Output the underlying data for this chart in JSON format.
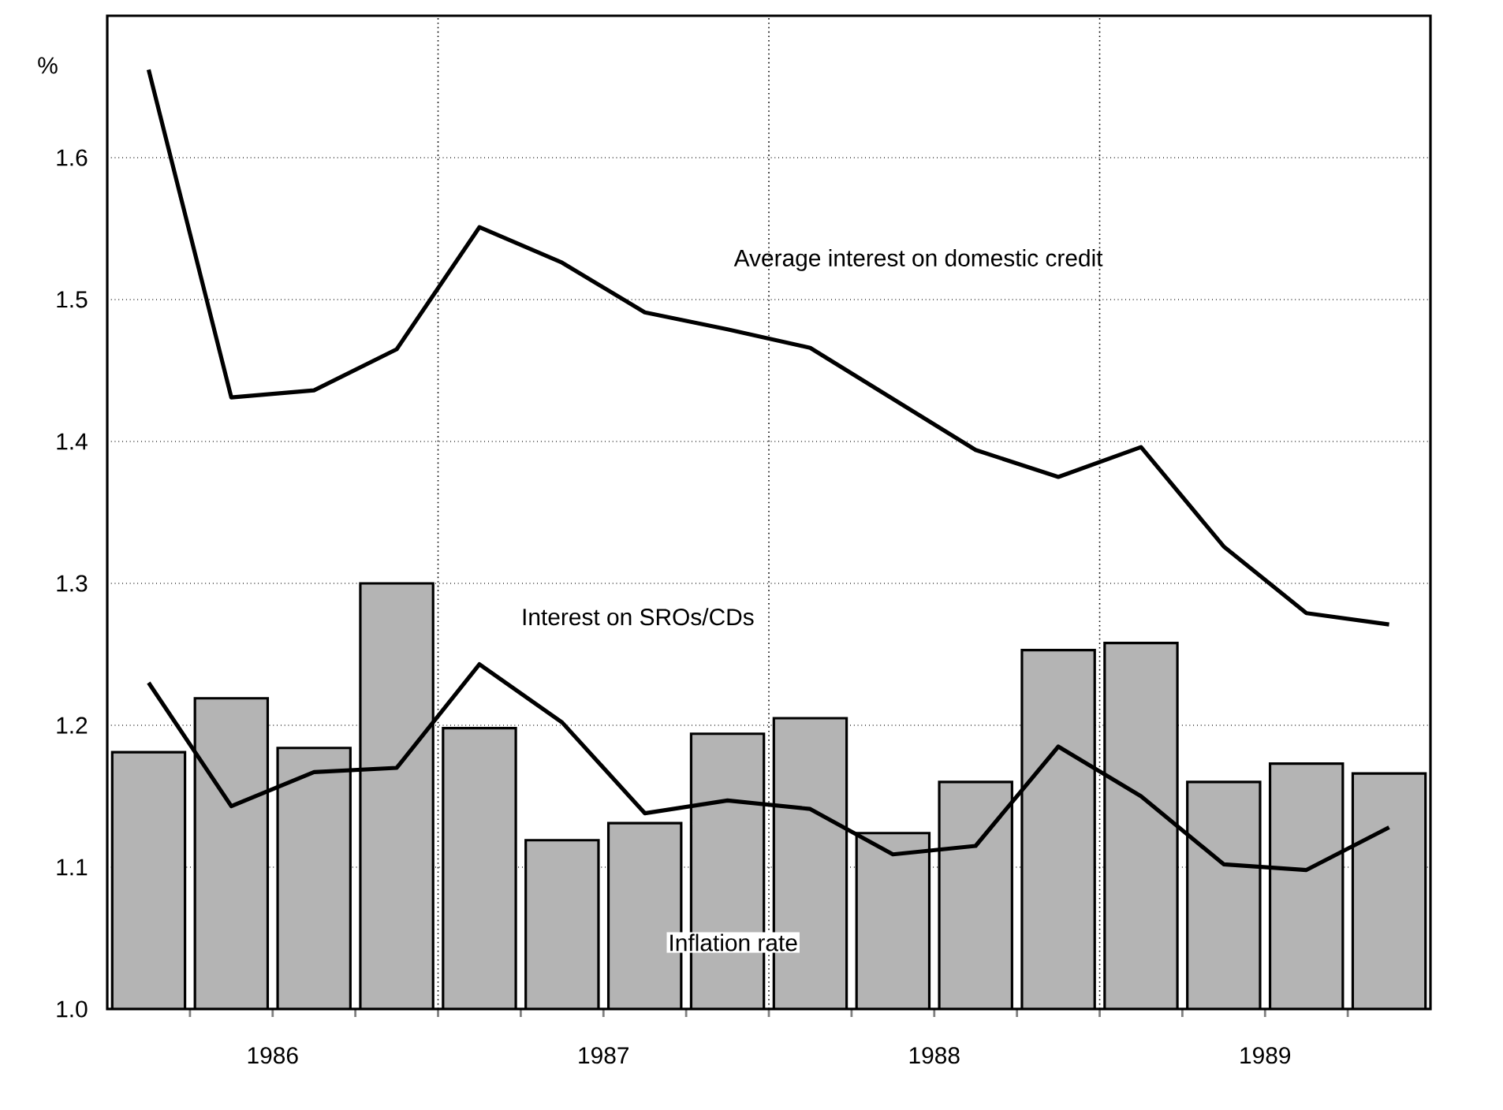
{
  "chart_data": {
    "type": "bar",
    "ylabel": "%",
    "x": [
      1986.125,
      1986.375,
      1986.625,
      1986.875,
      1987.125,
      1987.375,
      1987.625,
      1987.875,
      1988.125,
      1988.375,
      1988.625,
      1988.875,
      1989.125,
      1989.375,
      1989.625,
      1989.875
    ],
    "series": [
      {
        "name": "Inflation rate",
        "color": "#b4b4b4",
        "values": [
          1.181,
          1.219,
          1.184,
          1.3,
          1.198,
          1.119,
          1.131,
          1.194,
          1.205,
          1.124,
          1.16,
          1.253,
          1.258,
          1.16,
          1.173,
          1.166
        ]
      },
      {
        "name": "Interest on SROs/CDs",
        "type": "line",
        "color": "#000000",
        "values": [
          1.23,
          1.143,
          1.167,
          1.17,
          1.243,
          1.202,
          1.138,
          1.147,
          1.141,
          1.109,
          1.115,
          1.185,
          1.15,
          1.102,
          1.098,
          1.128
        ]
      },
      {
        "name": "Average interest on domestic credit",
        "type": "line",
        "color": "#000000",
        "values": [
          1.662,
          1.431,
          1.436,
          1.465,
          1.551,
          1.526,
          1.491,
          1.479,
          1.466,
          1.43,
          1.394,
          1.375,
          1.396,
          1.326,
          1.279,
          1.271
        ]
      }
    ],
    "xlim": [
      1986,
      1990
    ],
    "xticks": [
      {
        "value": 1986.25,
        "label": null
      },
      {
        "value": 1986.5,
        "label": "1986"
      },
      {
        "value": 1986.75,
        "label": null
      },
      {
        "value": 1987,
        "label": null
      },
      {
        "value": 1987.25,
        "label": null
      },
      {
        "value": 1987.5,
        "label": "1987"
      },
      {
        "value": 1987.75,
        "label": null
      },
      {
        "value": 1988,
        "label": null
      },
      {
        "value": 1988.25,
        "label": null
      },
      {
        "value": 1988.5,
        "label": "1988"
      },
      {
        "value": 1988.75,
        "label": null
      },
      {
        "value": 1989,
        "label": null
      },
      {
        "value": 1989.25,
        "label": null
      },
      {
        "value": 1989.5,
        "label": "1989"
      },
      {
        "value": 1989.75,
        "label": null
      }
    ],
    "ylim": [
      1.0,
      1.7
    ],
    "yticks": [
      {
        "value": 1.0,
        "label": "1.0"
      },
      1.1,
      1.2,
      1.3,
      1.4,
      1.5,
      1.6
    ],
    "grid": "y",
    "ref_lines": [
      {
        "axis": "x",
        "value": 1987,
        "line_style": "dotted"
      },
      {
        "axis": "x",
        "value": 1988,
        "line_style": "dotted"
      },
      {
        "axis": "x",
        "value": 1989,
        "line_style": "dotted"
      }
    ]
  }
}
